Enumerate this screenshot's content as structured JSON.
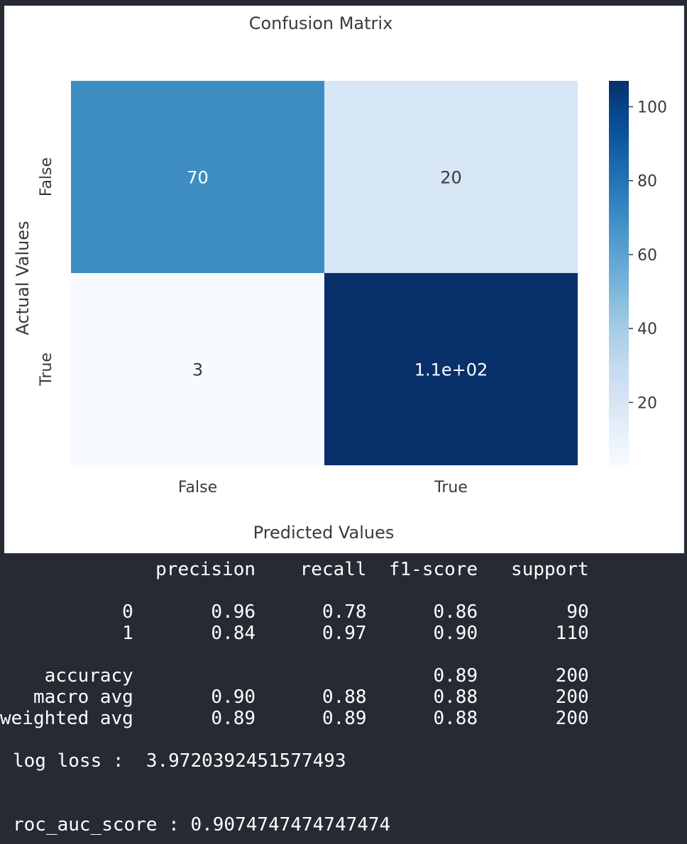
{
  "chart_data": {
    "type": "heatmap",
    "title": "Confusion Matrix",
    "xlabel": "Predicted Values",
    "ylabel": "Actual Values",
    "x_categories": [
      "False",
      "True"
    ],
    "y_categories": [
      "False",
      "True"
    ],
    "values": [
      [
        70,
        20
      ],
      [
        3,
        107
      ]
    ],
    "annotations": [
      [
        "70",
        "20"
      ],
      [
        "3",
        "1.1e+02"
      ]
    ],
    "colormap": "Blues",
    "colorbar": {
      "range": [
        3,
        107
      ],
      "ticks": [
        20,
        40,
        60,
        80,
        100
      ]
    }
  },
  "report": {
    "lines": [
      "              precision    recall  f1-score   support",
      "",
      "           0       0.96      0.78      0.86        90",
      "           1       0.84      0.97      0.90       110",
      "",
      "    accuracy                           0.89       200",
      "   macro avg       0.90      0.88      0.88       200",
      "weighted avg       0.89      0.89      0.88       200"
    ],
    "log_loss_line": "log loss :  3.9720392451577493",
    "roc_auc_line": "roc_auc_score : 0.9074747474747474"
  }
}
